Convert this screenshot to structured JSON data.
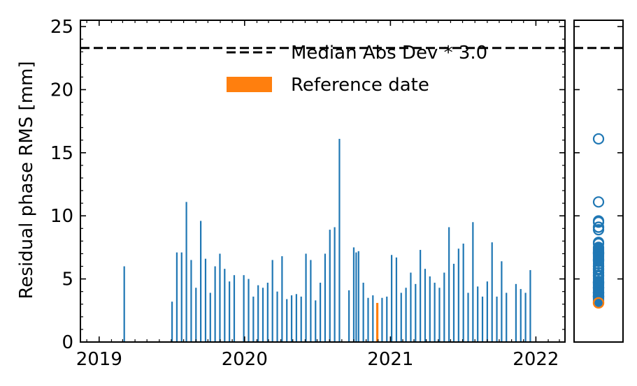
{
  "chart_data": [
    {
      "type": "bar",
      "ylabel": "Residual phase RMS [mm]",
      "xlabel": "",
      "xlim": [
        "2018-11-15",
        "2022-03-15"
      ],
      "ylim": [
        0,
        25.5
      ],
      "x_ticks": [
        "2019",
        "2020",
        "2021",
        "2022"
      ],
      "y_ticks": [
        "0",
        "5",
        "10",
        "15",
        "20",
        "25"
      ],
      "threshold": 23.3,
      "legend": {
        "placement": "top-right",
        "entries": [
          "Median Abs Dev * 3.0",
          "Reference date"
        ]
      },
      "colors": {
        "bars": "#1f77b4",
        "reference": "#ff7f0e",
        "threshold": "#000000"
      },
      "reference_date": {
        "x": "2020-11-29",
        "value": 3.1
      },
      "series": [
        {
          "x": [
            "2019-03-05",
            "2019-07-03",
            "2019-07-15",
            "2019-07-27",
            "2019-08-08",
            "2019-08-20",
            "2019-09-01",
            "2019-09-13",
            "2019-09-25",
            "2019-10-07",
            "2019-10-19",
            "2019-10-31",
            "2019-11-12",
            "2019-11-24",
            "2019-12-06",
            "2019-12-30",
            "2020-01-11",
            "2020-01-23",
            "2020-02-04",
            "2020-02-16",
            "2020-02-28",
            "2020-03-11",
            "2020-03-23",
            "2020-04-04",
            "2020-04-16",
            "2020-04-28",
            "2020-05-10",
            "2020-05-22",
            "2020-06-03",
            "2020-06-15",
            "2020-06-27",
            "2020-07-09",
            "2020-07-21",
            "2020-08-02",
            "2020-08-14",
            "2020-08-26",
            "2020-09-19",
            "2020-10-01",
            "2020-10-07",
            "2020-10-13",
            "2020-10-25",
            "2020-11-06",
            "2020-11-18",
            "2020-12-11",
            "2020-12-23",
            "2021-01-04",
            "2021-01-16",
            "2021-01-28",
            "2021-02-09",
            "2021-02-21",
            "2021-03-05",
            "2021-03-17",
            "2021-03-29",
            "2021-04-10",
            "2021-04-22",
            "2021-05-04",
            "2021-05-16",
            "2021-05-28",
            "2021-06-09",
            "2021-06-21",
            "2021-07-03",
            "2021-07-15",
            "2021-07-27",
            "2021-08-08",
            "2021-08-20",
            "2021-09-01",
            "2021-09-13",
            "2021-09-25",
            "2021-10-07",
            "2021-10-19",
            "2021-11-12",
            "2021-11-24",
            "2021-12-06",
            "2021-12-18"
          ],
          "values": [
            6.0,
            3.2,
            7.1,
            7.1,
            11.1,
            6.5,
            4.3,
            9.6,
            6.6,
            3.9,
            6.0,
            7.0,
            5.8,
            4.8,
            5.3,
            5.3,
            5.0,
            3.6,
            4.5,
            4.3,
            4.7,
            6.5,
            4.0,
            6.8,
            3.4,
            3.7,
            3.8,
            3.6,
            7.0,
            6.5,
            3.3,
            4.7,
            7.0,
            8.9,
            9.1,
            16.1,
            4.1,
            7.5,
            7.1,
            7.2,
            4.7,
            3.5,
            3.7,
            3.5,
            3.6,
            6.9,
            6.7,
            3.9,
            4.3,
            5.5,
            4.6,
            7.3,
            5.8,
            5.2,
            4.7,
            4.3,
            5.5,
            9.1,
            6.2,
            7.4,
            7.8,
            3.9,
            9.5,
            4.4,
            3.6,
            4.8,
            7.9,
            3.6,
            6.4,
            3.9,
            4.6,
            4.2,
            3.9,
            5.7
          ]
        }
      ]
    },
    {
      "type": "scatter",
      "ylim": [
        0,
        25.5
      ],
      "threshold": 23.3,
      "colors": {
        "markers": "#1f77b4",
        "reference": "#ff7f0e"
      },
      "values": [
        6.0,
        3.2,
        7.1,
        7.1,
        11.1,
        6.5,
        4.3,
        9.6,
        6.6,
        3.9,
        6.0,
        7.0,
        5.8,
        4.8,
        5.3,
        5.3,
        5.0,
        3.6,
        4.5,
        4.3,
        4.7,
        6.5,
        4.0,
        6.8,
        3.4,
        3.7,
        3.8,
        3.6,
        7.0,
        6.5,
        3.3,
        4.7,
        7.0,
        8.9,
        9.1,
        16.1,
        4.1,
        7.5,
        7.1,
        7.2,
        4.7,
        3.5,
        3.7,
        3.5,
        3.6,
        6.9,
        6.7,
        3.9,
        4.3,
        5.5,
        4.6,
        7.3,
        5.8,
        5.2,
        4.7,
        4.3,
        5.5,
        9.1,
        6.2,
        7.4,
        7.8,
        3.9,
        9.5,
        4.4,
        3.6,
        4.8,
        7.9,
        3.6,
        6.4,
        3.9,
        4.6,
        4.2,
        3.9,
        5.7
      ],
      "reference_value": 3.1
    }
  ]
}
